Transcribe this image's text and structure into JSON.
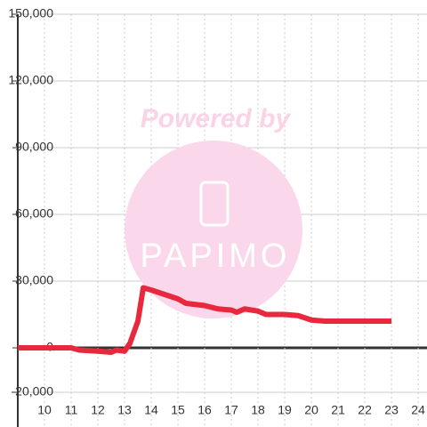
{
  "chart_data": {
    "type": "line",
    "watermark": {
      "line1": "Powered by",
      "line2": "PAPIMO"
    },
    "x": [
      9,
      11,
      11.3,
      12,
      12.5,
      12.7,
      13,
      13.2,
      13.5,
      13.7,
      14,
      14.5,
      15,
      15.3,
      16,
      16.5,
      17,
      17.2,
      17.5,
      18,
      18.3,
      19,
      19.5,
      20,
      20.5,
      21,
      23
    ],
    "series": [
      {
        "color": "#e8283c",
        "values": [
          0,
          0,
          -1000,
          -1500,
          -2000,
          -1000,
          -1500,
          2000,
          12000,
          27000,
          26000,
          24000,
          22000,
          20000,
          19000,
          17500,
          17000,
          16000,
          17500,
          16500,
          15000,
          15000,
          14500,
          12500,
          12000,
          12000,
          12000
        ]
      }
    ],
    "xlim": [
      9,
      24.33
    ],
    "xticks": [
      10,
      11,
      12,
      13,
      14,
      15,
      16,
      17,
      18,
      19,
      20,
      21,
      22,
      23,
      24
    ],
    "ylim": [
      -35600,
      150000
    ],
    "yticks": [
      {
        "value": -20000,
        "label": "-20,000"
      },
      0,
      {
        "value": 30000,
        "label": "30,000"
      },
      {
        "value": 60000,
        "label": "60,000"
      },
      {
        "value": 90000,
        "label": "90,000"
      },
      {
        "value": 120000,
        "label": "120,000"
      },
      {
        "value": 150000,
        "label": "150,000"
      }
    ],
    "grid": true
  }
}
